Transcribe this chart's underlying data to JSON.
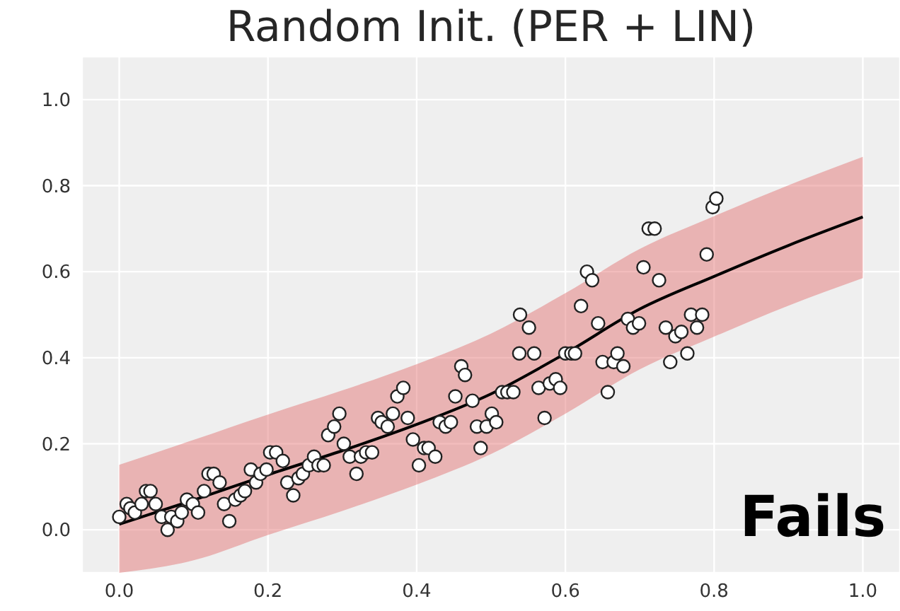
{
  "chart_data": {
    "type": "scatter",
    "title": "Random Init. (PER + LIN)",
    "annotations": [
      "Fails"
    ],
    "xlim": [
      -0.05,
      1.05
    ],
    "ylim": [
      -0.1,
      1.1
    ],
    "xticks": [
      {
        "value": 0,
        "label": "0.0"
      },
      0.2,
      0.4,
      0.6,
      0.8,
      {
        "value": 1,
        "label": "1.0"
      }
    ],
    "yticks": [
      {
        "value": 0,
        "label": "0.0"
      },
      0.2,
      0.4,
      0.6,
      0.8,
      {
        "value": 1,
        "label": "1.0"
      }
    ],
    "grid": true,
    "legend": false,
    "series": [
      {
        "type": "line",
        "color": "#000000",
        "marker": "none",
        "line_style": "solid",
        "x": [
          0,
          0.1,
          0.2,
          0.3,
          0.4,
          0.5,
          0.6,
          0.7,
          0.8,
          0.9,
          1.0
        ],
        "values": [
          0.013,
          0.069,
          0.128,
          0.184,
          0.245,
          0.316,
          0.41,
          0.513,
          0.589,
          0.661,
          0.727
        ],
        "lower": [
          -0.1,
          -0.071,
          -0.012,
          0.044,
          0.105,
          0.176,
          0.27,
          0.373,
          0.449,
          0.521,
          0.585
        ],
        "upper": [
          0.151,
          0.209,
          0.268,
          0.324,
          0.385,
          0.456,
          0.55,
          0.653,
          0.729,
          0.801,
          0.867
        ]
      },
      {
        "color": "#ffffff",
        "marker": "circle",
        "x": [
          0,
          0.01,
          0.015,
          0.021,
          0.03,
          0.036,
          0.042,
          0.049,
          0.057,
          0.065,
          0.07,
          0.078,
          0.084,
          0.091,
          0.099,
          0.106,
          0.114,
          0.12,
          0.127,
          0.135,
          0.141,
          0.148,
          0.156,
          0.163,
          0.169,
          0.177,
          0.184,
          0.19,
          0.198,
          0.203,
          0.211,
          0.22,
          0.226,
          0.234,
          0.241,
          0.247,
          0.255,
          0.262,
          0.268,
          0.275,
          0.281,
          0.289,
          0.296,
          0.302,
          0.31,
          0.319,
          0.325,
          0.332,
          0.34,
          0.348,
          0.353,
          0.361,
          0.368,
          0.374,
          0.382,
          0.388,
          0.395,
          0.403,
          0.41,
          0.416,
          0.425,
          0.431,
          0.439,
          0.446,
          0.452,
          0.46,
          0.465,
          0.475,
          0.481,
          0.486,
          0.494,
          0.501,
          0.507,
          0.515,
          0.522,
          0.53,
          0.539,
          0.551,
          0.538,
          0.558,
          0.564,
          0.572,
          0.579,
          0.587,
          0.593,
          0.6,
          0.608,
          0.613,
          0.621,
          0.629,
          0.636,
          0.644,
          0.65,
          0.657,
          0.665,
          0.67,
          0.678,
          0.684,
          0.691,
          0.699,
          0.705,
          0.712,
          0.72,
          0.726,
          0.735,
          0.741,
          0.748,
          0.756,
          0.764,
          0.769,
          0.777,
          0.784,
          0.79,
          0.798,
          0.803
        ],
        "values": [
          0.03,
          0.06,
          0.05,
          0.04,
          0.06,
          0.09,
          0.09,
          0.06,
          0.03,
          0.0,
          0.03,
          0.02,
          0.04,
          0.07,
          0.06,
          0.04,
          0.09,
          0.13,
          0.13,
          0.11,
          0.06,
          0.02,
          0.07,
          0.08,
          0.09,
          0.14,
          0.11,
          0.13,
          0.14,
          0.18,
          0.18,
          0.16,
          0.11,
          0.08,
          0.12,
          0.13,
          0.15,
          0.17,
          0.15,
          0.15,
          0.22,
          0.24,
          0.27,
          0.2,
          0.17,
          0.13,
          0.17,
          0.18,
          0.18,
          0.26,
          0.25,
          0.24,
          0.27,
          0.31,
          0.33,
          0.26,
          0.21,
          0.15,
          0.19,
          0.19,
          0.17,
          0.25,
          0.24,
          0.25,
          0.31,
          0.38,
          0.36,
          0.3,
          0.24,
          0.19,
          0.24,
          0.27,
          0.25,
          0.32,
          0.32,
          0.32,
          0.5,
          0.47,
          0.41,
          0.41,
          0.33,
          0.26,
          0.34,
          0.35,
          0.33,
          0.41,
          0.41,
          0.41,
          0.52,
          0.6,
          0.58,
          0.48,
          0.39,
          0.32,
          0.39,
          0.41,
          0.38,
          0.49,
          0.47,
          0.48,
          0.61,
          0.7,
          0.7,
          0.58,
          0.47,
          0.39,
          0.45,
          0.46,
          0.41,
          0.5,
          0.47,
          0.5,
          0.64,
          0.75,
          0.77
        ]
      }
    ]
  }
}
